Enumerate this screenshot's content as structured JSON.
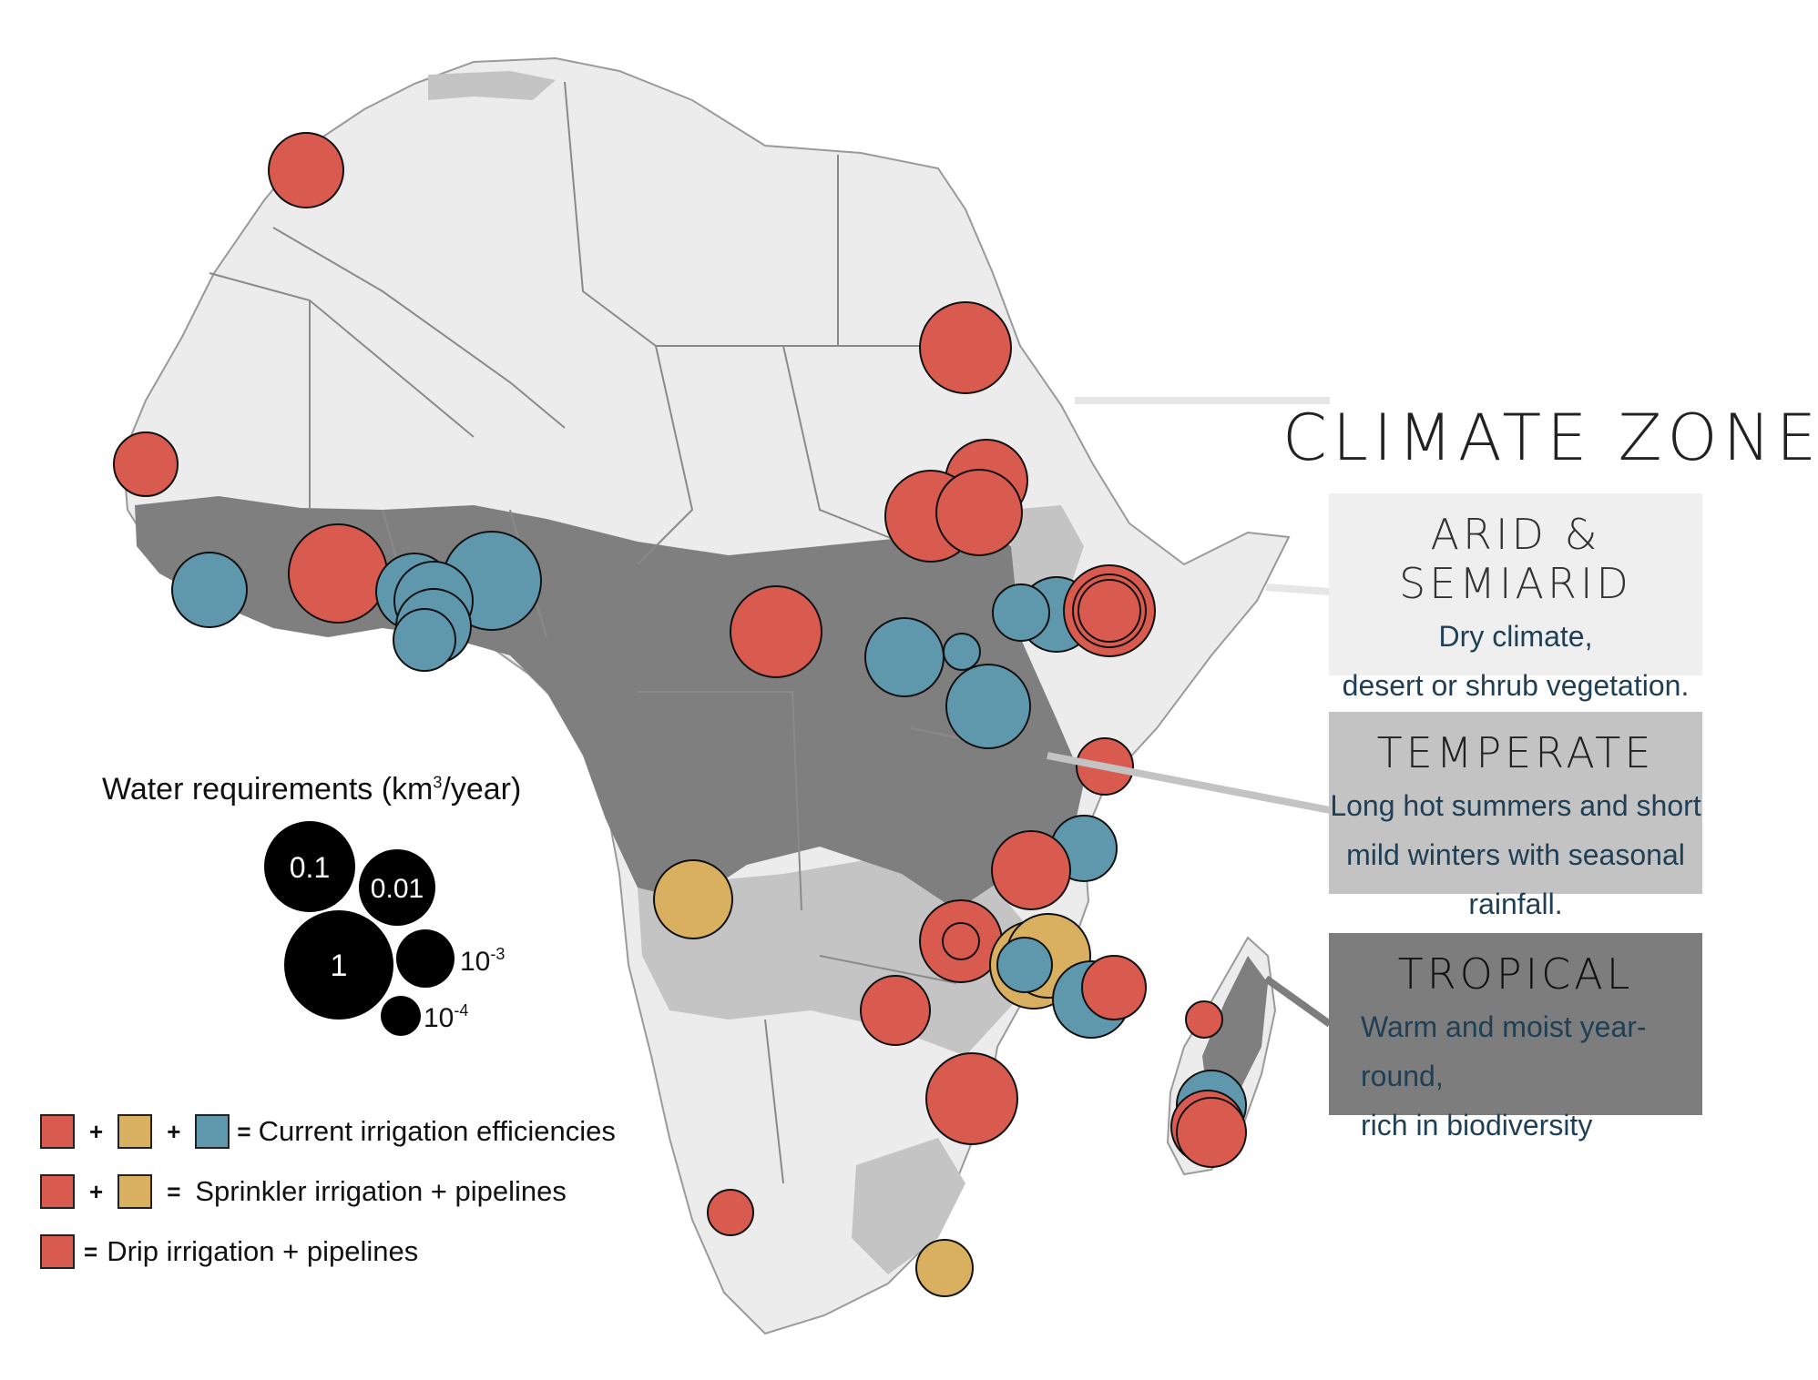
{
  "title": "CLIMATE ZONES",
  "zones": {
    "arid": {
      "name": "ARID & SEMIARID",
      "line1": "Dry climate,",
      "line2": "desert or shrub vegetation."
    },
    "temperate": {
      "name": "TEMPERATE",
      "line1": "Long hot summers and short",
      "line2": "mild winters with seasonal rainfall."
    },
    "tropical": {
      "name": "TROPICAL",
      "line1": "Warm and moist year-round,",
      "line2": "rich in biodiversity"
    }
  },
  "water_legend": {
    "title_prefix": "Water requirements (km",
    "title_sup": "3",
    "title_suffix": "/year)",
    "sizes": [
      {
        "label": "1",
        "value": 1
      },
      {
        "label": "0.1",
        "value": 0.1
      },
      {
        "label": "0.01",
        "value": 0.01
      },
      {
        "label_base": "10",
        "label_exp": "-3",
        "value": 0.001
      },
      {
        "label_base": "10",
        "label_exp": "-4",
        "value": 0.0001
      }
    ]
  },
  "scenario_legend": {
    "plus": "+",
    "equals": "=",
    "current": "Current irrigation efficiencies",
    "sprinkler": "Sprinkler irrigation + pipelines",
    "drip": "Drip irrigation + pipelines"
  },
  "colors": {
    "drip": "#d95b50",
    "sprinkler": "#d9b060",
    "current": "#5f98ad",
    "arid": "#ececec",
    "temperate": "#c4c4c4",
    "tropical": "#7f7f7f"
  }
}
